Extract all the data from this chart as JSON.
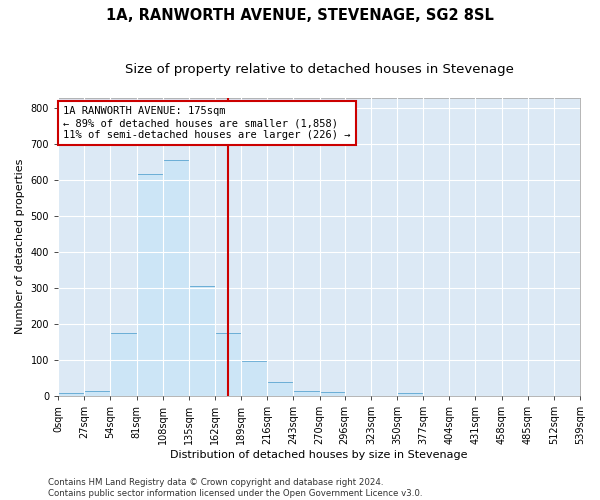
{
  "title": "1A, RANWORTH AVENUE, STEVENAGE, SG2 8SL",
  "subtitle": "Size of property relative to detached houses in Stevenage",
  "xlabel": "Distribution of detached houses by size in Stevenage",
  "ylabel": "Number of detached properties",
  "bar_color": "#cce5f6",
  "bar_edge_color": "#6aaed6",
  "background_color": "#dce9f5",
  "grid_color": "#ffffff",
  "annotation_text": "1A RANWORTH AVENUE: 175sqm\n← 89% of detached houses are smaller (1,858)\n11% of semi-detached houses are larger (226) →",
  "vline_x": 175,
  "vline_color": "#cc0000",
  "annotation_box_color": "#ffffff",
  "annotation_box_edge": "#cc0000",
  "bin_edges": [
    0,
    27,
    54,
    81,
    108,
    135,
    162,
    189,
    216,
    243,
    270,
    296,
    323,
    350,
    377,
    404,
    431,
    458,
    485,
    512,
    539
  ],
  "bar_heights": [
    8,
    14,
    175,
    618,
    655,
    305,
    175,
    98,
    40,
    15,
    10,
    0,
    0,
    8,
    0,
    0,
    0,
    0,
    0,
    0
  ],
  "ylim": [
    0,
    830
  ],
  "yticks": [
    0,
    100,
    200,
    300,
    400,
    500,
    600,
    700,
    800
  ],
  "footer_text": "Contains HM Land Registry data © Crown copyright and database right 2024.\nContains public sector information licensed under the Open Government Licence v3.0.",
  "title_fontsize": 10.5,
  "subtitle_fontsize": 9.5,
  "axis_label_fontsize": 8,
  "tick_fontsize": 7,
  "annotation_fontsize": 7.5,
  "footer_fontsize": 6.2
}
